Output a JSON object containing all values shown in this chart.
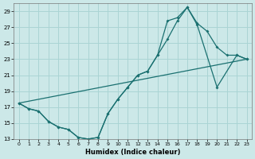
{
  "xlabel": "Humidex (Indice chaleur)",
  "background_color": "#cce8e8",
  "line_color": "#1a7070",
  "grid_color": "#aad4d4",
  "xlim": [
    -0.5,
    23.5
  ],
  "ylim": [
    13,
    30
  ],
  "yticks": [
    13,
    15,
    17,
    19,
    21,
    23,
    25,
    27,
    29
  ],
  "xticks": [
    0,
    1,
    2,
    3,
    4,
    5,
    6,
    7,
    8,
    9,
    10,
    11,
    12,
    13,
    14,
    15,
    16,
    17,
    18,
    19,
    20,
    21,
    22,
    23
  ],
  "line1_x": [
    0,
    1,
    2,
    3,
    4,
    5,
    6,
    7,
    8,
    9,
    10,
    11,
    12,
    13,
    14,
    15,
    16,
    17,
    18,
    19,
    20,
    21,
    22,
    23
  ],
  "line1_y": [
    17.5,
    16.8,
    16.5,
    15.2,
    14.5,
    14.2,
    13.2,
    13.0,
    13.2,
    16.2,
    18.0,
    19.5,
    21.0,
    21.5,
    23.5,
    25.5,
    27.8,
    29.5,
    27.5,
    26.5,
    24.5,
    23.5,
    23.5,
    23.0
  ],
  "line2_x": [
    0,
    1,
    2,
    3,
    4,
    5,
    6,
    7,
    8,
    9,
    10,
    11,
    12,
    13,
    14,
    15,
    16,
    17,
    18,
    20,
    22,
    23
  ],
  "line2_y": [
    17.5,
    16.8,
    16.5,
    15.2,
    14.5,
    14.2,
    13.2,
    13.0,
    13.2,
    16.2,
    18.0,
    19.5,
    21.0,
    21.5,
    23.5,
    27.8,
    28.2,
    29.5,
    27.3,
    19.5,
    23.5,
    23.0
  ],
  "line3_x": [
    0,
    23
  ],
  "line3_y": [
    17.5,
    23.0
  ]
}
